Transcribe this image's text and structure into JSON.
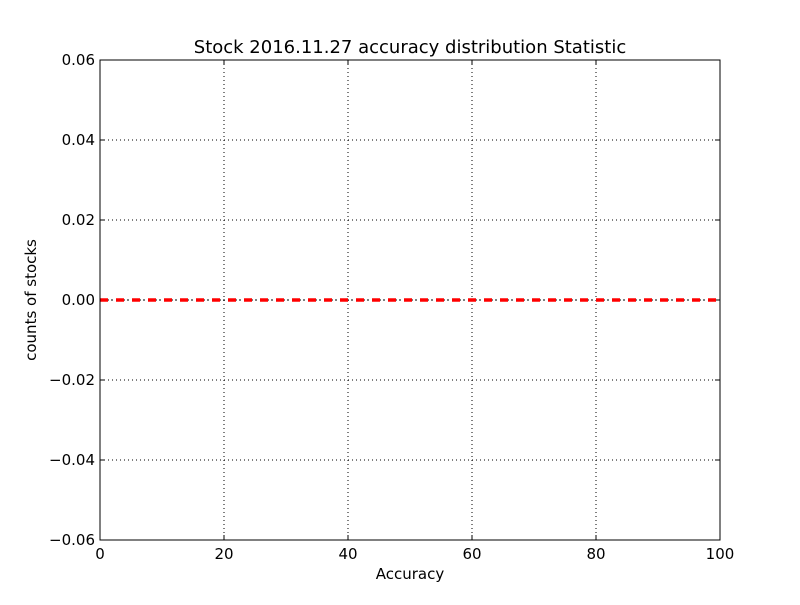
{
  "chart_data": {
    "type": "line",
    "title": "Stock 2016.11.27 accuracy distribution Statistic",
    "xlabel": "Accuracy",
    "ylabel": "counts of stocks",
    "xlim": [
      0,
      100
    ],
    "ylim": [
      -0.06,
      0.06
    ],
    "xticks": [
      0,
      20,
      40,
      60,
      80,
      100
    ],
    "xtick_labels": [
      "0",
      "20",
      "40",
      "60",
      "80",
      "100"
    ],
    "yticks": [
      0.06,
      0.04,
      0.02,
      0.0,
      -0.02,
      -0.04,
      -0.06
    ],
    "ytick_labels": [
      "0.06",
      "0.04",
      "0.02",
      "0.00",
      "−0.02",
      "−0.04",
      "−0.06"
    ],
    "grid": true,
    "series": [
      {
        "line_style": "dashed",
        "color": "#ff0000",
        "x": [
          0,
          100
        ],
        "y": [
          0,
          0
        ]
      }
    ],
    "reference_lines": [
      {
        "axis": "y",
        "value": 0,
        "line_style": "dash-dot",
        "color": "#000000"
      }
    ]
  }
}
